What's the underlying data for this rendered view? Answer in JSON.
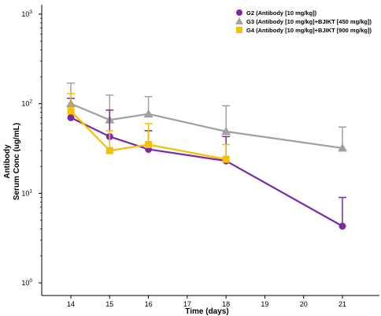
{
  "chart_data": {
    "type": "line",
    "title": "",
    "xlabel": "Time (days)",
    "ylabel_lines": [
      "Antibody",
      "Serum Conc (ug/mL)"
    ],
    "yscale": "log",
    "ylim": [
      1,
      1000
    ],
    "xlim": [
      13,
      22
    ],
    "x_ticks": [
      14,
      15,
      16,
      17,
      18,
      19,
      20,
      21
    ],
    "y_ticks": [
      {
        "value": 1,
        "base": "10",
        "exp": "0"
      },
      {
        "value": 10,
        "base": "10",
        "exp": "1"
      },
      {
        "value": 100,
        "base": "10",
        "exp": "2"
      },
      {
        "value": 1000,
        "base": "10",
        "exp": "3"
      }
    ],
    "grid": false,
    "legend_position": "top-right",
    "series": [
      {
        "name": "G2 (Antibody [10 mg/kg])",
        "color": "#7b2aa6",
        "marker": "circle",
        "x": [
          14,
          15,
          16,
          18,
          21
        ],
        "values": [
          70,
          43,
          31,
          23,
          4.3
        ],
        "error_upper": [
          115,
          85,
          50,
          43,
          9
        ]
      },
      {
        "name": "G3 (Antibody [10 mg/kg]+BJIKT [450 mg/kg])",
        "color": "#a0a0a0",
        "marker": "triangle",
        "x": [
          14,
          15,
          16,
          18,
          21
        ],
        "values": [
          100,
          66,
          77,
          49,
          32
        ],
        "error_upper": [
          170,
          125,
          120,
          95,
          55
        ]
      },
      {
        "name": "G4 (Antibody [10 mg/kg]+BJIKT [900 mg/kg])",
        "color": "#f5c000",
        "marker": "square",
        "x": [
          14,
          15,
          16,
          18
        ],
        "values": [
          83,
          30,
          35,
          24
        ],
        "error_upper": [
          130,
          50,
          60,
          35
        ]
      }
    ]
  }
}
